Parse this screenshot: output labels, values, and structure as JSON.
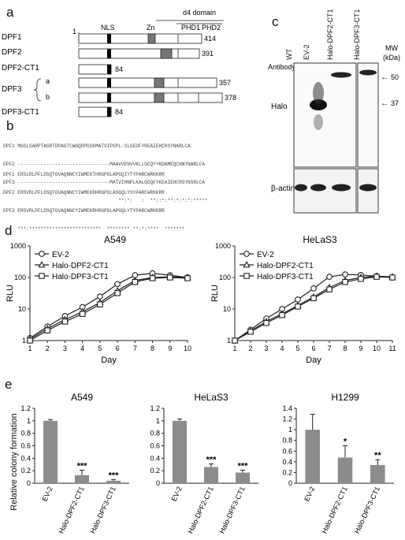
{
  "panel_a": {
    "label": "a",
    "domain_labels": {
      "nls": "NLS",
      "zn": "Zn",
      "d4": "d4 domain",
      "phd1": "PHD1",
      "phd2": "PHD2"
    },
    "start_num": "1",
    "rows": [
      {
        "name": "DPF1",
        "end": "414"
      },
      {
        "name": "DPF2",
        "end": "391"
      },
      {
        "name": "DPF2-CT1",
        "end": "84"
      },
      {
        "name": "DPF3",
        "end": "357"
      },
      {
        "name": "",
        "end": "378"
      },
      {
        "name": "DPF3-CT1",
        "end": "84"
      }
    ],
    "dpf3_sub": [
      "a",
      "b"
    ]
  },
  "panel_b": {
    "label": "b",
    "lines": [
      "DPF1 MGGLSARPTAGRTDPAGTCWGQDPGSKMATVIPGPL-SLGEDFYREAIEHCRSYNARLCA",
      "DPF2 --------------------------------MAAVVENVVKLLGEQYYKDAMEQCHNYNARLCA",
      "DPF3 --------------------------------MATVIHNPLKALGDQFYKEAIEHCRSYNSRLCA",
      "                                        **:*:   :  **::*:**:*:*:*:*****",
      "DPF1 ERSLRLPFLDSQTGVAQNNCYIWMEKTHRGPGLAPGQIYTYPARCWRKKRR",
      "DPF2 ERSVRLPFLDSQTGVAQNNCYIWMEKRHRGPGLASGQLYSYPARCWRKKRR",
      "DPF3 ERSVRLPFLDSQTGVAQNNCYIWMEKRHRGPGLAPGQLYTYPARCWRKKRR",
      "     ***:*************************  ******** **:*:****  *******"
    ]
  },
  "panel_c": {
    "label": "c",
    "lanes": [
      "WT",
      "EV-2",
      "Halo-DPF2-CT1",
      "Halo-DPF3-CT1"
    ],
    "mw_header": "MW\n(kDa)",
    "antibody_header": "Antibody",
    "rows": [
      "Halo",
      "β-actin"
    ],
    "markers": [
      {
        "label": "50"
      },
      {
        "label": "37"
      }
    ],
    "arrow_glyph": "←"
  },
  "panel_d": {
    "label": "d",
    "ylabel": "RLU",
    "xlabel": "Day",
    "legend": [
      "EV-2",
      "Halo-DPF2-CT1",
      "Halo-DPF3-CT1"
    ]
  },
  "panel_e": {
    "label": "e",
    "ylabel": "Relative colony formation",
    "categories": [
      "EV-2",
      "Halo-DPF2-CT1",
      "Halo-DPF3-CT1"
    ]
  },
  "chart_data": [
    {
      "type": "line",
      "title": "A549",
      "xlabel": "Day",
      "ylabel": "RLU",
      "yscale": "log",
      "ylim": [
        1,
        1000
      ],
      "x": [
        1,
        2,
        3,
        4,
        5,
        6,
        7,
        8,
        9,
        10
      ],
      "series": [
        {
          "name": "EV-2",
          "marker": "circle",
          "values": [
            1.2,
            2.8,
            6,
            11.5,
            25,
            62,
            118,
            135,
            118,
            100
          ]
        },
        {
          "name": "Halo-DPF2-CT1",
          "marker": "triangle",
          "values": [
            1.1,
            2.4,
            4.6,
            8.2,
            16,
            38,
            80,
            100,
            105,
            100
          ]
        },
        {
          "name": "Halo-DPF3-CT1",
          "marker": "square",
          "values": [
            1.0,
            2.1,
            4.0,
            7,
            14,
            32,
            72,
            95,
            100,
            95
          ]
        }
      ]
    },
    {
      "type": "line",
      "title": "HeLaS3",
      "xlabel": "Day",
      "ylabel": "RLU",
      "yscale": "log",
      "ylim": [
        1,
        1000
      ],
      "x": [
        1,
        2,
        3,
        4,
        5,
        6,
        7,
        8,
        9,
        10,
        11
      ],
      "series": [
        {
          "name": "EV-2",
          "marker": "circle",
          "values": [
            1.0,
            2.2,
            5,
            10,
            20,
            45,
            105,
            125,
            120,
            110,
            100
          ]
        },
        {
          "name": "Halo-DPF2-CT1",
          "marker": "triangle",
          "values": [
            1.0,
            2.0,
            4,
            7,
            13,
            24,
            48,
            80,
            100,
            110,
            105
          ]
        },
        {
          "name": "Halo-DPF3-CT1",
          "marker": "square",
          "values": [
            1.0,
            1.9,
            3.6,
            6.4,
            12,
            22,
            42,
            72,
            90,
            105,
            100
          ]
        }
      ]
    },
    {
      "type": "bar",
      "title": "A549",
      "ylabel": "Relative colony formation",
      "ylim": [
        0,
        1.2
      ],
      "yticks": [
        0,
        0.2,
        0.4,
        0.6,
        0.8,
        1,
        1.2
      ],
      "categories": [
        "EV-2",
        "Halo-DPF2-CT1",
        "Halo-DPF3-CT1"
      ],
      "values": [
        1.0,
        0.13,
        0.04
      ],
      "errors": [
        0.02,
        0.08,
        0.02
      ],
      "significance": [
        "",
        "***",
        "***"
      ]
    },
    {
      "type": "bar",
      "title": "HeLaS3",
      "ylim": [
        0,
        1.2
      ],
      "yticks": [
        0,
        0.2,
        0.4,
        0.6,
        0.8,
        1,
        1.2
      ],
      "categories": [
        "EV-2",
        "Halo-DPF2-CT1",
        "Halo-DPF3-CT1"
      ],
      "values": [
        1.0,
        0.26,
        0.17
      ],
      "errors": [
        0.03,
        0.05,
        0.04
      ],
      "significance": [
        "",
        "***",
        "***"
      ]
    },
    {
      "type": "bar",
      "title": "H1299",
      "ylim": [
        0,
        1.4
      ],
      "yticks": [
        0,
        0.2,
        0.4,
        0.6,
        0.8,
        1,
        1.2,
        1.4
      ],
      "categories": [
        "EV-2",
        "Halo-DPF2-CT1",
        "Halo-DPF3-CT1"
      ],
      "values": [
        1.0,
        0.48,
        0.34
      ],
      "errors": [
        0.29,
        0.22,
        0.1
      ],
      "significance": [
        "",
        "*",
        "**"
      ]
    }
  ]
}
